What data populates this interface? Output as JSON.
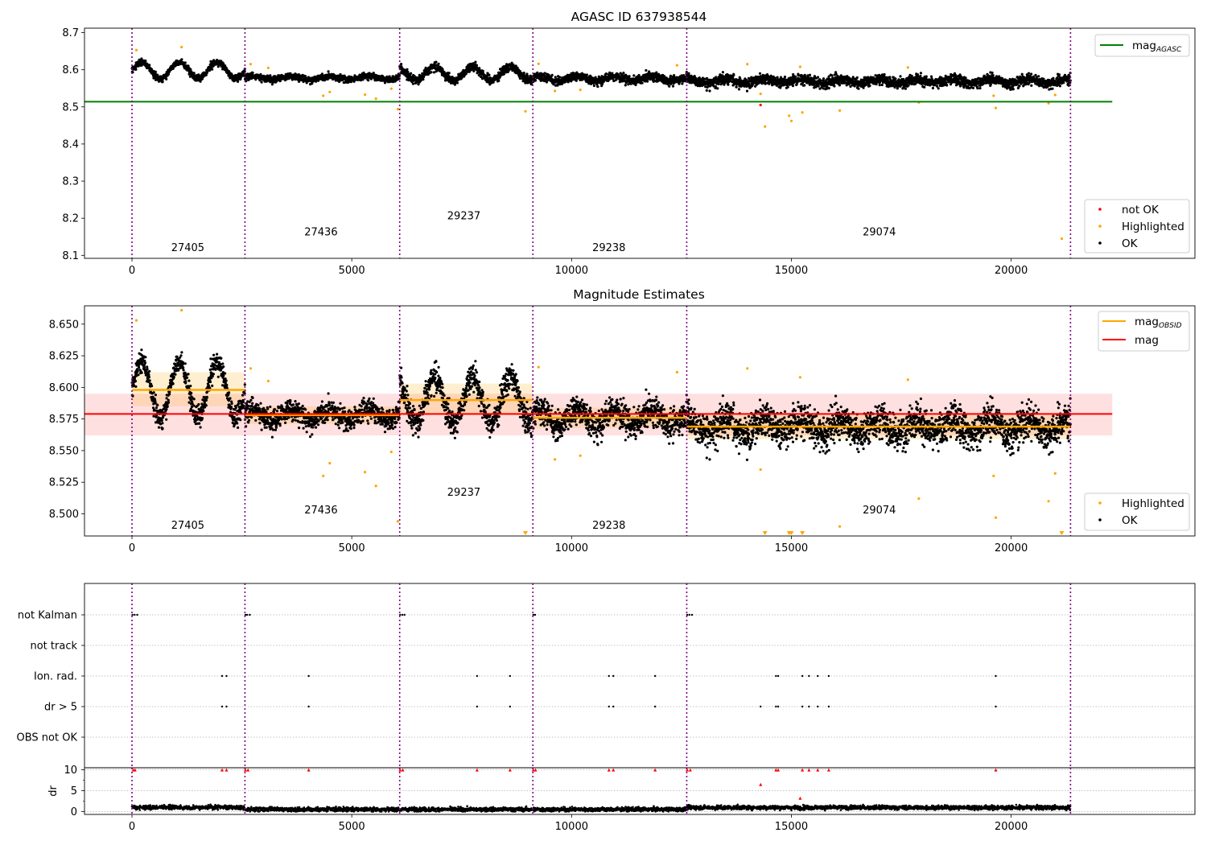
{
  "x_ticks": [
    0,
    5000,
    10000,
    15000,
    20000
  ],
  "xlim": [
    -1080,
    24180
  ],
  "chart_data": [
    {
      "type": "scatter",
      "title": "AGASC ID 637938544",
      "ylim": [
        8.092,
        8.712
      ],
      "y_ticks": [
        "8.1",
        "8.2",
        "8.3",
        "8.4",
        "8.5",
        "8.6",
        "8.7"
      ],
      "obs_boundaries": [
        0,
        2570,
        6090,
        9120,
        12620,
        21350
      ],
      "obsids": [
        {
          "label": "27405",
          "x": 1270,
          "y": 8.122
        },
        {
          "label": "27436",
          "x": 4300,
          "y": 8.165
        },
        {
          "label": "29237",
          "x": 7550,
          "y": 8.208
        },
        {
          "label": "29238",
          "x": 10850,
          "y": 8.122
        },
        {
          "label": "29074",
          "x": 17000,
          "y": 8.165
        }
      ],
      "segments": [
        {
          "x0": 0,
          "x1": 2570,
          "mean": 8.598,
          "amp": 0.022,
          "noise": 0.006
        },
        {
          "x0": 2570,
          "x1": 6090,
          "mean": 8.578,
          "amp": 0.004,
          "noise": 0.006
        },
        {
          "x0": 6090,
          "x1": 9120,
          "mean": 8.59,
          "amp": 0.018,
          "noise": 0.008
        },
        {
          "x0": 9120,
          "x1": 12620,
          "mean": 8.576,
          "amp": 0.006,
          "noise": 0.008
        },
        {
          "x0": 12620,
          "x1": 21350,
          "mean": 8.569,
          "amp": 0.006,
          "noise": 0.01
        }
      ],
      "agasc_mag": 8.514,
      "agasc_line_x": [
        -1080,
        22300
      ],
      "highlighted": [
        {
          "x": 100,
          "y": 8.653
        },
        {
          "x": 1130,
          "y": 8.661
        },
        {
          "x": 2700,
          "y": 8.615
        },
        {
          "x": 3100,
          "y": 8.605
        },
        {
          "x": 4350,
          "y": 8.53
        },
        {
          "x": 4500,
          "y": 8.54
        },
        {
          "x": 5300,
          "y": 8.533
        },
        {
          "x": 5550,
          "y": 8.522
        },
        {
          "x": 5900,
          "y": 8.549
        },
        {
          "x": 6050,
          "y": 8.494
        },
        {
          "x": 8950,
          "y": 8.488
        },
        {
          "x": 9250,
          "y": 8.616
        },
        {
          "x": 9620,
          "y": 8.543
        },
        {
          "x": 10200,
          "y": 8.546
        },
        {
          "x": 12400,
          "y": 8.612
        },
        {
          "x": 14000,
          "y": 8.615
        },
        {
          "x": 14300,
          "y": 8.535
        },
        {
          "x": 14400,
          "y": 8.447
        },
        {
          "x": 14950,
          "y": 8.476
        },
        {
          "x": 15000,
          "y": 8.462
        },
        {
          "x": 15250,
          "y": 8.485
        },
        {
          "x": 15200,
          "y": 8.608
        },
        {
          "x": 16100,
          "y": 8.49
        },
        {
          "x": 17650,
          "y": 8.606
        },
        {
          "x": 17900,
          "y": 8.512
        },
        {
          "x": 19600,
          "y": 8.53
        },
        {
          "x": 19650,
          "y": 8.497
        },
        {
          "x": 20850,
          "y": 8.51
        },
        {
          "x": 21000,
          "y": 8.532
        },
        {
          "x": 21150,
          "y": 8.145
        }
      ],
      "not_ok": [
        {
          "x": 14300,
          "y": 8.505
        }
      ],
      "legend_top": [
        {
          "label": "mag",
          "sub": "AGASC",
          "color": "#008000"
        }
      ],
      "legend_bottom": [
        {
          "label": "not OK",
          "color": "#ff0000"
        },
        {
          "label": "Highlighted",
          "color": "#ffa500"
        },
        {
          "label": "OK",
          "color": "#000000"
        }
      ]
    },
    {
      "type": "scatter",
      "title": "Magnitude Estimates",
      "ylim": [
        8.4825,
        8.6645
      ],
      "y_ticks": [
        "8.500",
        "8.525",
        "8.550",
        "8.575",
        "8.600",
        "8.625",
        "8.650"
      ],
      "obsids": [
        {
          "label": "27405",
          "x": 1270,
          "y": 8.4915
        },
        {
          "label": "27436",
          "x": 4300,
          "y": 8.5035
        },
        {
          "label": "29237",
          "x": 7550,
          "y": 8.5175
        },
        {
          "label": "29238",
          "x": 10850,
          "y": 8.4915
        },
        {
          "label": "29074",
          "x": 17000,
          "y": 8.5035
        }
      ],
      "mag": 8.579,
      "mag_band": [
        8.562,
        8.595
      ],
      "mag_line_x": [
        -1080,
        22300
      ],
      "obsid_mags": [
        {
          "x0": 0,
          "x1": 2570,
          "mag": 8.598,
          "lo": 8.585,
          "hi": 8.612
        },
        {
          "x0": 2570,
          "x1": 6090,
          "mag": 8.578,
          "lo": 8.571,
          "hi": 8.585
        },
        {
          "x0": 6090,
          "x1": 9120,
          "mag": 8.59,
          "lo": 8.578,
          "hi": 8.603
        },
        {
          "x0": 9120,
          "x1": 12620,
          "mag": 8.576,
          "lo": 8.568,
          "hi": 8.584
        },
        {
          "x0": 12620,
          "x1": 21350,
          "mag": 8.569,
          "lo": 8.559,
          "hi": 8.579
        }
      ],
      "highlighted": [
        {
          "x": 100,
          "y": 8.653
        },
        {
          "x": 1130,
          "y": 8.661
        },
        {
          "x": 2700,
          "y": 8.615
        },
        {
          "x": 3100,
          "y": 8.605
        },
        {
          "x": 4350,
          "y": 8.53
        },
        {
          "x": 4500,
          "y": 8.54
        },
        {
          "x": 5300,
          "y": 8.533
        },
        {
          "x": 5550,
          "y": 8.522
        },
        {
          "x": 5900,
          "y": 8.549
        },
        {
          "x": 6050,
          "y": 8.494
        },
        {
          "x": 9250,
          "y": 8.616
        },
        {
          "x": 9620,
          "y": 8.543
        },
        {
          "x": 10200,
          "y": 8.546
        },
        {
          "x": 12400,
          "y": 8.612
        },
        {
          "x": 14000,
          "y": 8.615
        },
        {
          "x": 14300,
          "y": 8.535
        },
        {
          "x": 15200,
          "y": 8.608
        },
        {
          "x": 16100,
          "y": 8.49
        },
        {
          "x": 17650,
          "y": 8.606
        },
        {
          "x": 17900,
          "y": 8.512
        },
        {
          "x": 19600,
          "y": 8.53
        },
        {
          "x": 19650,
          "y": 8.497
        },
        {
          "x": 20850,
          "y": 8.51
        },
        {
          "x": 21000,
          "y": 8.532
        }
      ],
      "highlighted_offscale": [
        {
          "x": 8950
        },
        {
          "x": 14400
        },
        {
          "x": 14950
        },
        {
          "x": 15000
        },
        {
          "x": 15250
        },
        {
          "x": 21150
        }
      ],
      "legend_top": [
        {
          "label": "mag",
          "sub": "OBSID",
          "color": "#ffa500"
        },
        {
          "label": "mag",
          "sub": "",
          "color": "#ff0000"
        }
      ],
      "legend_bottom": [
        {
          "label": "Highlighted",
          "color": "#ffa500"
        },
        {
          "label": "OK",
          "color": "#000000"
        }
      ]
    },
    {
      "type": "scatter",
      "flag_rows": [
        "not Kalman",
        "not track",
        "Ion. rad.",
        "dr > 5",
        "OBS not OK"
      ],
      "flag_points": {
        "not Kalman": [
          10,
          60,
          120,
          2580,
          2620,
          2680,
          6100,
          6150,
          6200,
          9130,
          9170,
          12630,
          12680,
          12740
        ],
        "not track": [],
        "Ion. rad.": [
          2050,
          2150,
          4020,
          7850,
          8600,
          10850,
          10950,
          11900,
          14650,
          14700,
          15250,
          15400,
          15600,
          15850,
          19650
        ],
        "dr > 5": [
          2050,
          2150,
          4020,
          7850,
          8600,
          10850,
          10950,
          11900,
          14300,
          14650,
          14700,
          15250,
          15400,
          15600,
          15850,
          19650
        ],
        "OBS not OK": []
      },
      "dr_ylabel": "dr",
      "dr_ticks": [
        "0",
        "5",
        "10"
      ],
      "dr_ylim": [
        -0.7,
        10.5
      ],
      "dr_high": [
        {
          "x": 30,
          "y": 10
        },
        {
          "x": 70,
          "y": 10
        },
        {
          "x": 2050,
          "y": 10
        },
        {
          "x": 2150,
          "y": 10
        },
        {
          "x": 2580,
          "y": 10
        },
        {
          "x": 2640,
          "y": 10
        },
        {
          "x": 4020,
          "y": 10
        },
        {
          "x": 6100,
          "y": 10
        },
        {
          "x": 6160,
          "y": 10
        },
        {
          "x": 7850,
          "y": 10
        },
        {
          "x": 8600,
          "y": 10
        },
        {
          "x": 9130,
          "y": 10
        },
        {
          "x": 9180,
          "y": 10
        },
        {
          "x": 10850,
          "y": 10
        },
        {
          "x": 10950,
          "y": 10
        },
        {
          "x": 11900,
          "y": 10
        },
        {
          "x": 12630,
          "y": 10
        },
        {
          "x": 12700,
          "y": 10
        },
        {
          "x": 14300,
          "y": 6.5
        },
        {
          "x": 14650,
          "y": 10
        },
        {
          "x": 14700,
          "y": 10
        },
        {
          "x": 15200,
          "y": 3.2
        },
        {
          "x": 15250,
          "y": 10
        },
        {
          "x": 15400,
          "y": 10
        },
        {
          "x": 15600,
          "y": 10
        },
        {
          "x": 15850,
          "y": 10
        },
        {
          "x": 19650,
          "y": 10
        }
      ]
    }
  ]
}
